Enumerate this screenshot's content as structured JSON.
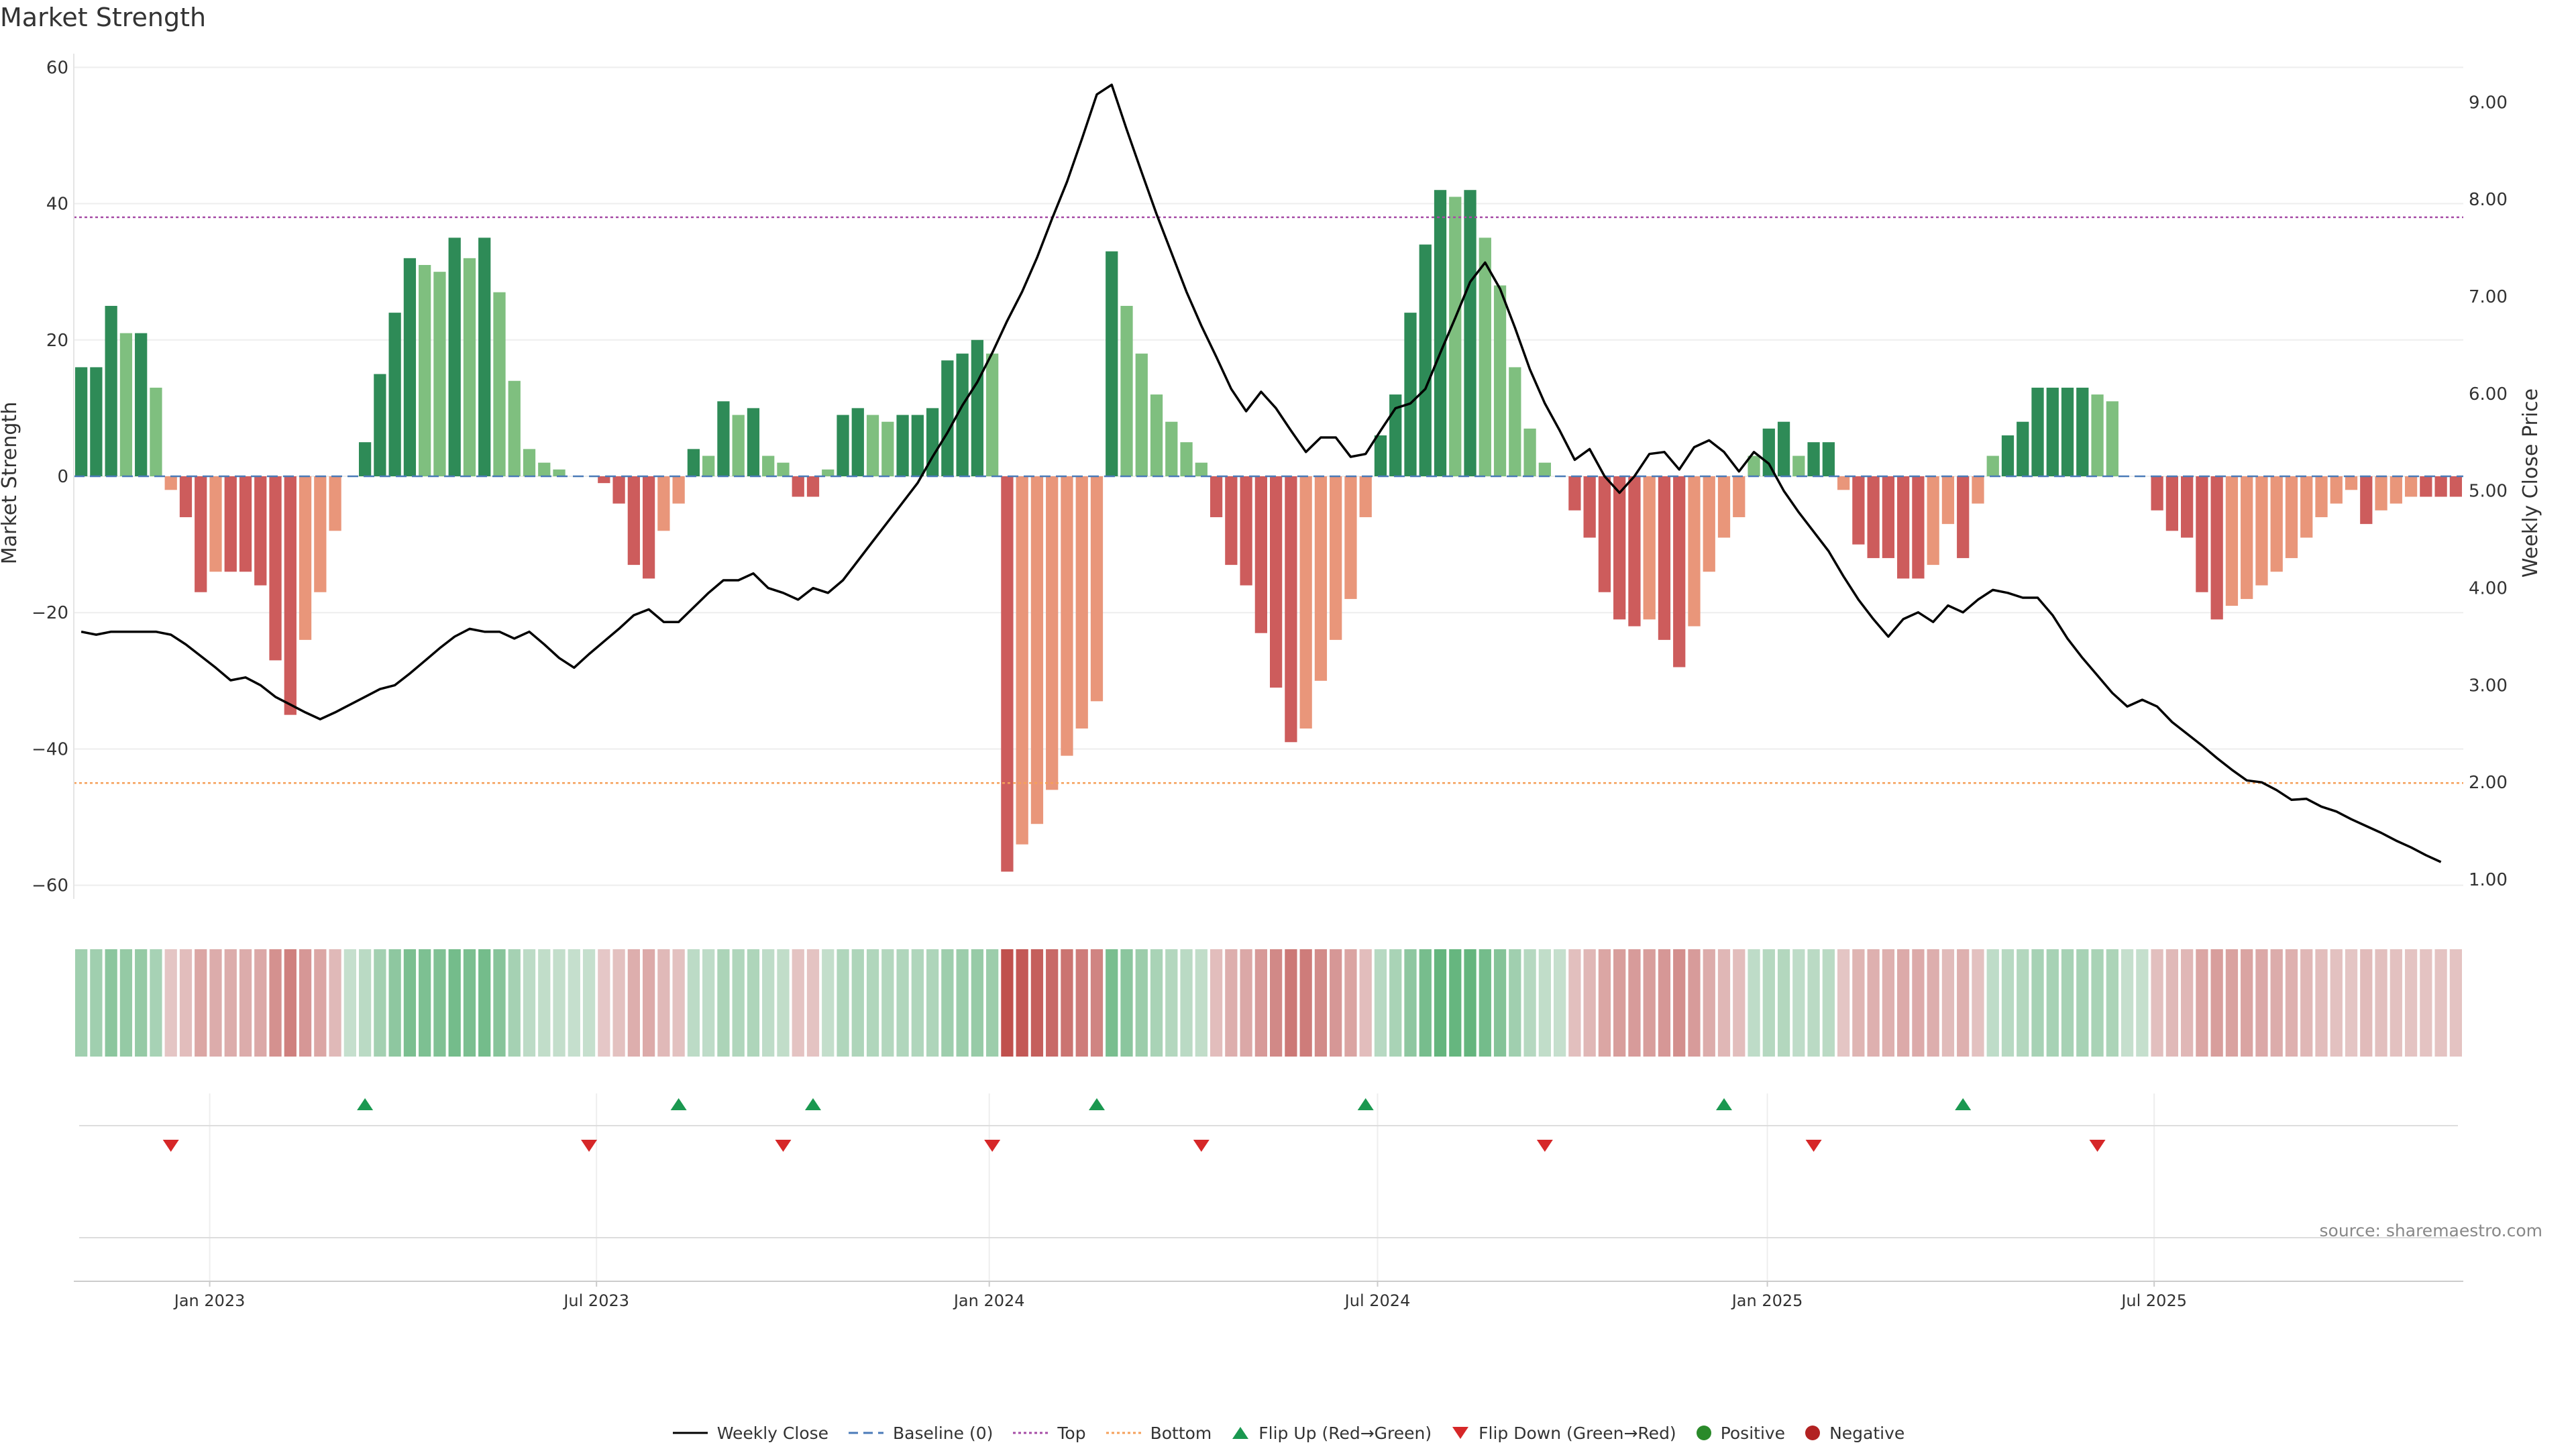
{
  "title": "Market Strength",
  "source": "source: sharemaestro.com",
  "colors": {
    "posStrong": "#2e8b57",
    "posWeak": "#7fbf7f",
    "negStrong": "#cd5c5c",
    "negWeak": "#e9967a",
    "top": "#a64ca6",
    "bottom": "#f5a05a",
    "baseline": "#4a7ab8",
    "flipUp": "#1a9850",
    "flipDown": "#d62728",
    "price": "#000000"
  },
  "legend": [
    {
      "label": "Weekly Close",
      "kind": "line"
    },
    {
      "label": "Baseline (0)",
      "kind": "dash"
    },
    {
      "label": "Top",
      "kind": "dot-purple"
    },
    {
      "label": "Bottom",
      "kind": "dot-orange"
    },
    {
      "label": "Flip Up (Red→Green)",
      "kind": "tri-up"
    },
    {
      "label": "Flip Down (Green→Red)",
      "kind": "tri-down"
    },
    {
      "label": "Positive",
      "kind": "circle-green"
    },
    {
      "label": "Negative",
      "kind": "circle-red"
    }
  ],
  "chart_data": {
    "type": "bar",
    "ylabel": "Market Strength",
    "y2label": "Weekly Close Price",
    "ylim": [
      -62,
      62
    ],
    "y2lim": [
      0.8,
      9.5
    ],
    "yticks": [
      -60,
      -40,
      -20,
      0,
      20,
      40,
      60
    ],
    "y2ticks": [
      "1.00",
      "2.00",
      "3.00",
      "4.00",
      "5.00",
      "6.00",
      "7.00",
      "8.00",
      "9.00"
    ],
    "top_level": 38,
    "bottom_level": -45,
    "x_start": "2022-10-17",
    "x_ticks": [
      {
        "label": "Jan 2023",
        "index": 9.1
      },
      {
        "label": "Jul 2023",
        "index": 35.0
      },
      {
        "label": "Jan 2024",
        "index": 61.3
      },
      {
        "label": "Jul 2024",
        "index": 87.3
      },
      {
        "label": "Jan 2025",
        "index": 113.4
      },
      {
        "label": "Jul 2025",
        "index": 139.3
      }
    ],
    "strength": [
      16,
      16,
      25,
      21,
      21,
      13,
      -2,
      -6,
      -17,
      -14,
      -14,
      -14,
      -16,
      -27,
      -35,
      -24,
      -17,
      -8,
      0,
      5,
      15,
      24,
      32,
      31,
      30,
      35,
      32,
      35,
      27,
      14,
      4,
      2,
      1,
      0,
      0,
      -1,
      -4,
      -13,
      -15,
      -8,
      -4,
      4,
      3,
      11,
      9,
      10,
      3,
      2,
      -3,
      -3,
      1,
      9,
      10,
      9,
      8,
      9,
      9,
      10,
      17,
      18,
      20,
      18,
      -58,
      -54,
      -51,
      -46,
      -41,
      -37,
      -33,
      33,
      25,
      18,
      12,
      8,
      5,
      2,
      -6,
      -13,
      -16,
      -23,
      -31,
      -39,
      -37,
      -30,
      -24,
      -18,
      -6,
      6,
      12,
      24,
      34,
      42,
      41,
      42,
      35,
      28,
      16,
      7,
      2,
      0,
      -5,
      -9,
      -17,
      -21,
      -22,
      -21,
      -24,
      -28,
      -22,
      -14,
      -9,
      -6,
      3,
      7,
      8,
      3,
      5,
      5,
      -2,
      -10,
      -12,
      -12,
      -15,
      -15,
      -13,
      -7,
      -12,
      -4,
      3,
      6,
      8,
      13,
      13,
      13,
      13,
      12,
      11,
      0,
      0,
      -5,
      -8,
      -9,
      -17,
      -21,
      -19,
      -18,
      -16,
      -14,
      -12,
      -9,
      -6,
      -4,
      -2,
      -7,
      -5,
      -4,
      -3,
      -3,
      -3,
      -3
    ],
    "price": [
      3.55,
      3.52,
      3.55,
      3.55,
      3.55,
      3.55,
      3.52,
      3.42,
      3.3,
      3.18,
      3.05,
      3.08,
      3.0,
      2.88,
      2.8,
      2.72,
      2.65,
      2.72,
      2.8,
      2.88,
      2.96,
      3.0,
      3.12,
      3.25,
      3.38,
      3.5,
      3.58,
      3.55,
      3.55,
      3.48,
      3.55,
      3.42,
      3.28,
      3.18,
      3.32,
      3.45,
      3.58,
      3.72,
      3.78,
      3.65,
      3.65,
      3.8,
      3.95,
      4.08,
      4.08,
      4.15,
      4.0,
      3.95,
      3.88,
      4.0,
      3.95,
      4.08,
      4.28,
      4.48,
      4.68,
      4.88,
      5.08,
      5.35,
      5.6,
      5.88,
      6.12,
      6.42,
      6.75,
      7.05,
      7.4,
      7.8,
      8.18,
      8.62,
      9.08,
      9.18,
      8.72,
      8.28,
      7.85,
      7.45,
      7.05,
      6.7,
      6.38,
      6.05,
      5.82,
      6.02,
      5.85,
      5.62,
      5.4,
      5.55,
      5.55,
      5.35,
      5.38,
      5.62,
      5.85,
      5.9,
      6.05,
      6.42,
      6.78,
      7.15,
      7.35,
      7.08,
      6.68,
      6.25,
      5.9,
      5.62,
      5.32,
      5.43,
      5.15,
      4.98,
      5.15,
      5.38,
      5.4,
      5.22,
      5.45,
      5.52,
      5.4,
      5.2,
      5.4,
      5.28,
      5.0,
      4.78,
      4.58,
      4.38,
      4.12,
      3.88,
      3.68,
      3.5,
      3.68,
      3.75,
      3.65,
      3.82,
      3.75,
      3.88,
      3.98,
      3.95,
      3.9,
      3.9,
      3.72,
      3.48,
      3.28,
      3.1,
      2.92,
      2.78,
      2.85,
      2.78,
      2.62,
      2.5,
      2.38,
      2.25,
      2.13,
      2.02,
      2.0,
      1.92,
      1.82,
      1.83,
      1.75,
      1.7,
      1.62,
      1.55,
      1.48,
      1.4,
      1.33,
      1.25,
      1.18
    ],
    "flips": [
      {
        "index": 6,
        "dir": "down"
      },
      {
        "index": 19,
        "dir": "up"
      },
      {
        "index": 34,
        "dir": "down"
      },
      {
        "index": 40,
        "dir": "up"
      },
      {
        "index": 47,
        "dir": "down"
      },
      {
        "index": 49,
        "dir": "up"
      },
      {
        "index": 61,
        "dir": "down"
      },
      {
        "index": 68,
        "dir": "up"
      },
      {
        "index": 75,
        "dir": "down"
      },
      {
        "index": 86,
        "dir": "up"
      },
      {
        "index": 98,
        "dir": "down"
      },
      {
        "index": 110,
        "dir": "up"
      },
      {
        "index": 116,
        "dir": "down"
      },
      {
        "index": 126,
        "dir": "up"
      },
      {
        "index": 135,
        "dir": "down"
      }
    ]
  }
}
